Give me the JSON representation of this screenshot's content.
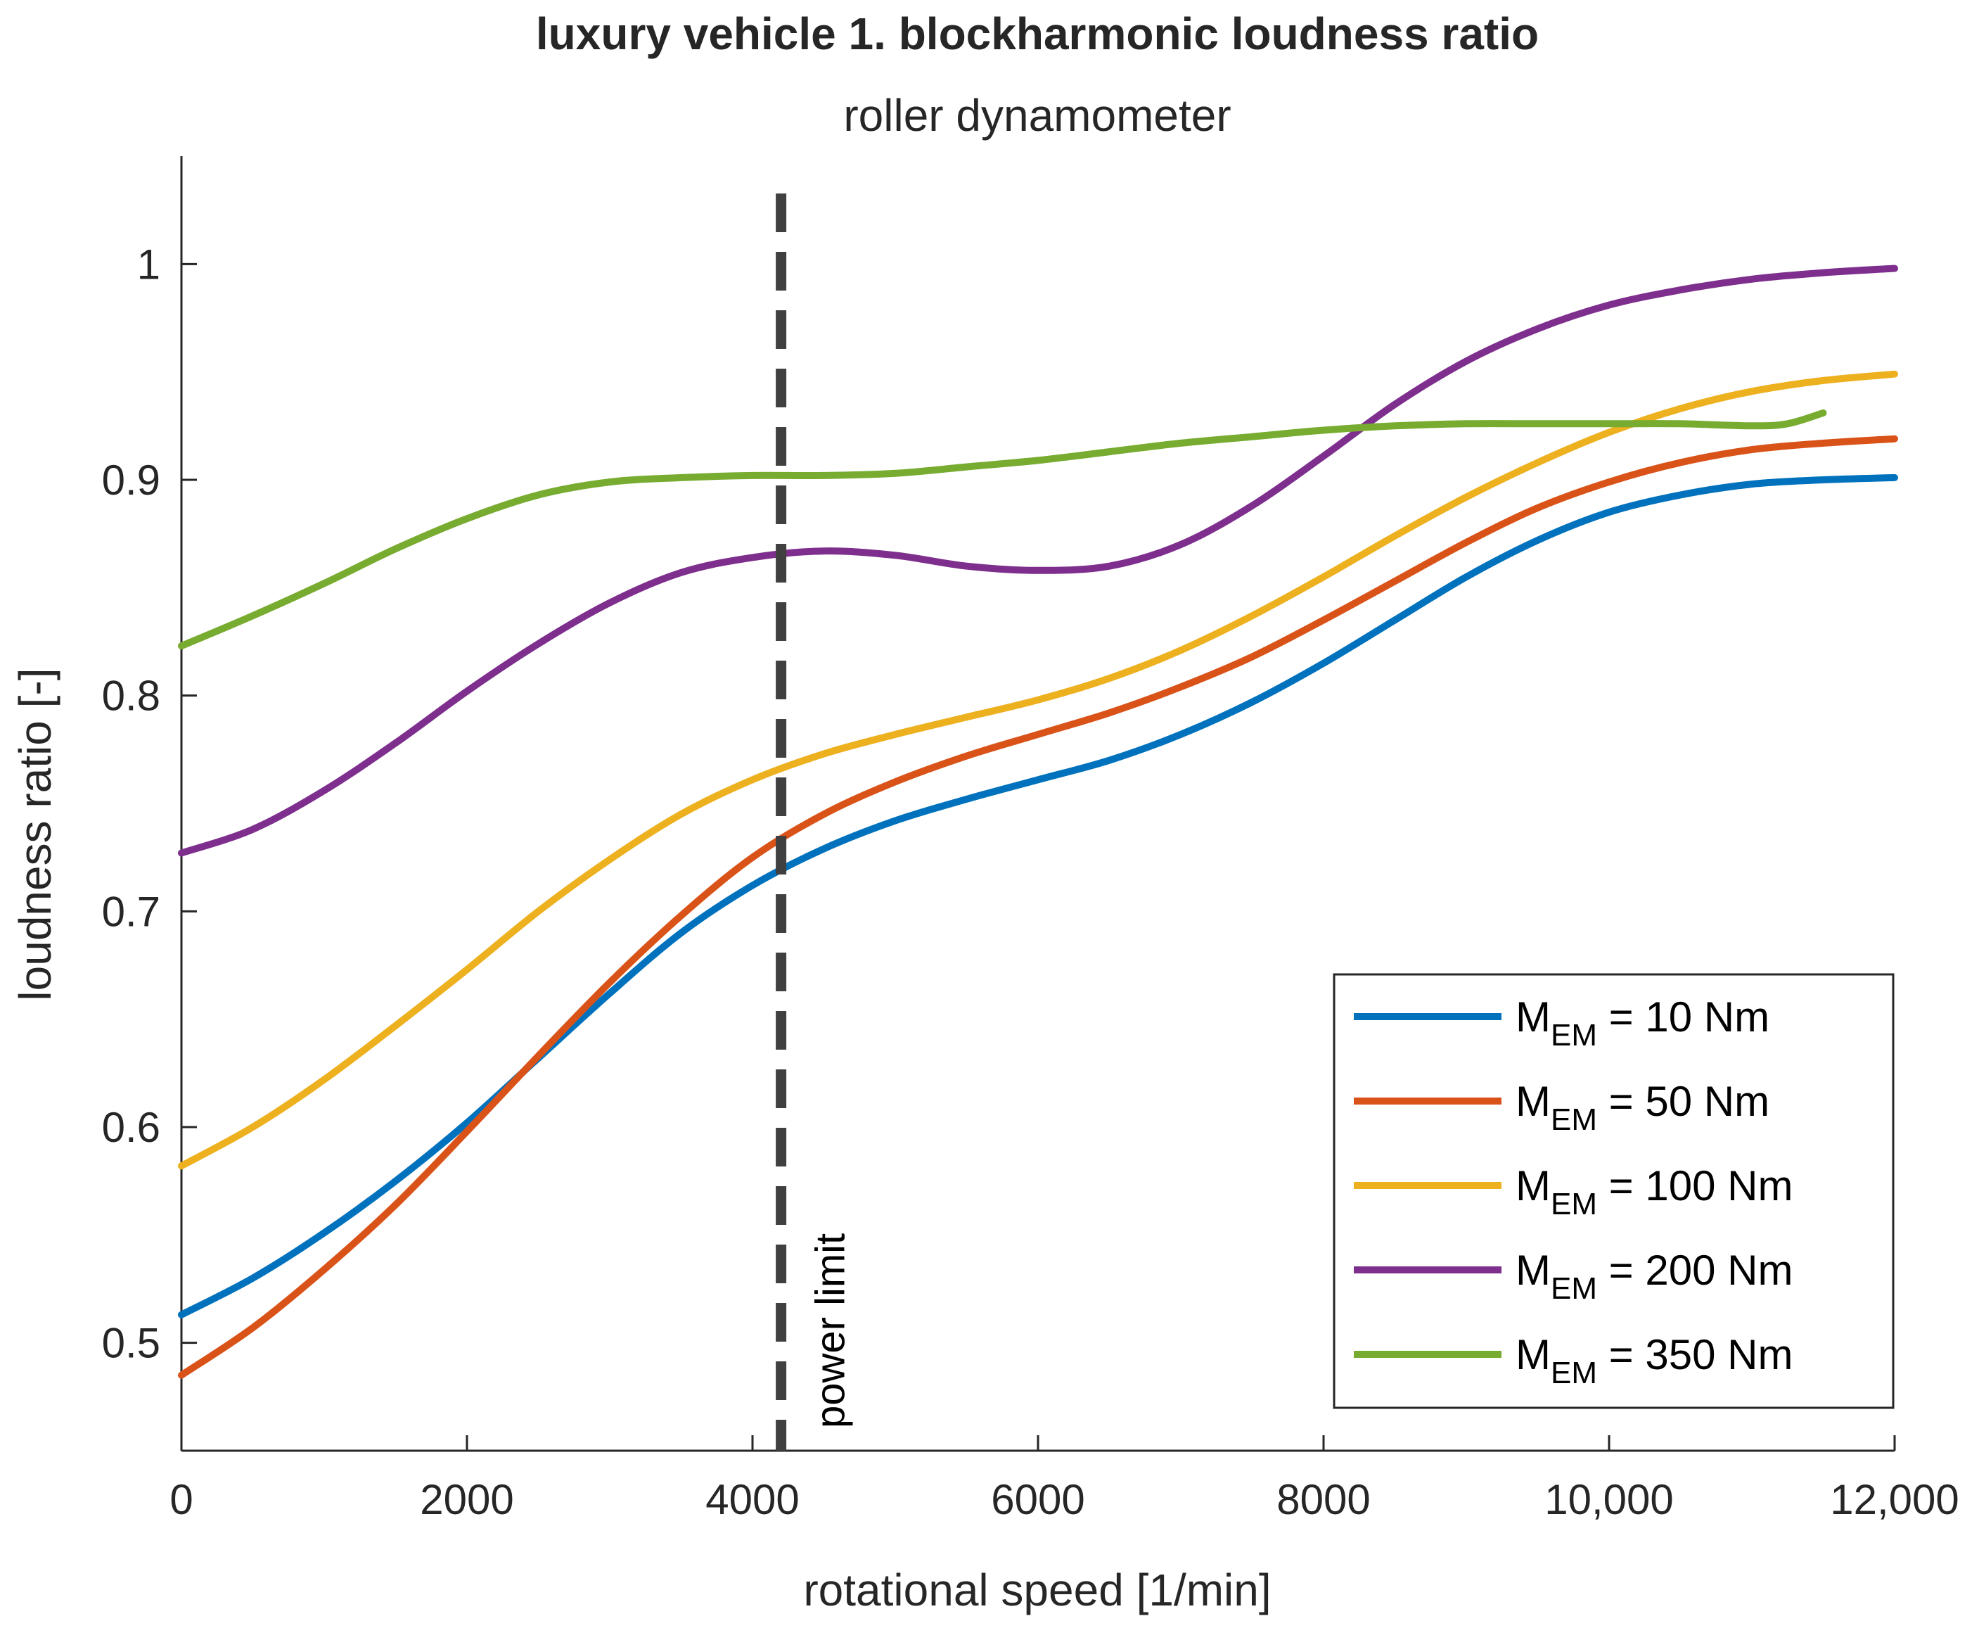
{
  "chart_data": {
    "type": "line",
    "title": "luxury vehicle 1. blockharmonic loudness ratio",
    "subtitle": "roller dynamometer",
    "xlabel": "rotational speed [1/min]",
    "ylabel": "loudness ratio [-]",
    "xlim": [
      0,
      12000
    ],
    "ylim": [
      0.45,
      1.05
    ],
    "xticks": [
      0,
      2000,
      4000,
      6000,
      8000,
      10000,
      12000
    ],
    "xtick_labels": [
      "0",
      "2000",
      "4000",
      "6000",
      "8000",
      "10,000",
      "12,000"
    ],
    "yticks": [
      0.5,
      0.6,
      0.7,
      0.8,
      0.9,
      1.0
    ],
    "ytick_labels": [
      "0.5",
      "0.6",
      "0.7",
      "0.8",
      "0.9",
      "1"
    ],
    "grid": false,
    "legend_position": "bottom-right",
    "annotation": {
      "text": "power limit",
      "x": 4200,
      "style": "dashed vertical line"
    },
    "series": [
      {
        "name": "M_EM = 10 Nm",
        "legend_main": "M",
        "legend_sub": "EM",
        "legend_value": " =   10 Nm",
        "color": "#0072BD",
        "x": [
          0,
          500,
          1000,
          1500,
          2000,
          2500,
          3000,
          3500,
          4000,
          4500,
          5000,
          5500,
          6000,
          6500,
          7000,
          7500,
          8000,
          8500,
          9000,
          9500,
          10000,
          10500,
          11000,
          11500,
          12000
        ],
        "y": [
          0.513,
          0.53,
          0.551,
          0.575,
          0.602,
          0.632,
          0.662,
          0.69,
          0.712,
          0.729,
          0.742,
          0.752,
          0.761,
          0.77,
          0.782,
          0.797,
          0.815,
          0.835,
          0.855,
          0.872,
          0.885,
          0.893,
          0.898,
          0.9,
          0.901
        ]
      },
      {
        "name": "M_EM = 50 Nm",
        "legend_main": "M",
        "legend_sub": "EM",
        "legend_value": " =   50 Nm",
        "color": "#D95319",
        "x": [
          0,
          500,
          1000,
          1500,
          2000,
          2500,
          3000,
          3500,
          4000,
          4500,
          5000,
          5500,
          6000,
          6500,
          7000,
          7500,
          8000,
          8500,
          9000,
          9500,
          10000,
          10500,
          11000,
          11500,
          12000
        ],
        "y": [
          0.485,
          0.507,
          0.534,
          0.564,
          0.598,
          0.633,
          0.667,
          0.698,
          0.725,
          0.745,
          0.76,
          0.772,
          0.782,
          0.792,
          0.804,
          0.818,
          0.835,
          0.853,
          0.871,
          0.887,
          0.899,
          0.908,
          0.914,
          0.917,
          0.919
        ]
      },
      {
        "name": "M_EM = 100 Nm",
        "legend_main": "M",
        "legend_sub": "EM",
        "legend_value": " = 100 Nm",
        "color": "#EDB120",
        "x": [
          0,
          500,
          1000,
          1500,
          2000,
          2500,
          3000,
          3500,
          4000,
          4500,
          5000,
          5500,
          6000,
          6500,
          7000,
          7500,
          8000,
          8500,
          9000,
          9500,
          10000,
          10500,
          11000,
          11500,
          12000
        ],
        "y": [
          0.582,
          0.6,
          0.622,
          0.647,
          0.673,
          0.7,
          0.724,
          0.745,
          0.761,
          0.773,
          0.782,
          0.79,
          0.798,
          0.808,
          0.821,
          0.837,
          0.855,
          0.874,
          0.892,
          0.908,
          0.922,
          0.933,
          0.941,
          0.946,
          0.949
        ]
      },
      {
        "name": "M_EM = 200 Nm",
        "legend_main": "M",
        "legend_sub": "EM",
        "legend_value": " = 200 Nm",
        "color": "#7E2F8E",
        "x": [
          0,
          500,
          1000,
          1500,
          2000,
          2500,
          3000,
          3500,
          4000,
          4500,
          5000,
          5500,
          6000,
          6500,
          7000,
          7500,
          8000,
          8500,
          9000,
          9500,
          10000,
          10500,
          11000,
          11500,
          12000
        ],
        "y": [
          0.727,
          0.738,
          0.756,
          0.778,
          0.802,
          0.824,
          0.843,
          0.857,
          0.864,
          0.867,
          0.865,
          0.86,
          0.858,
          0.86,
          0.87,
          0.888,
          0.911,
          0.935,
          0.955,
          0.97,
          0.981,
          0.988,
          0.993,
          0.996,
          0.998
        ]
      },
      {
        "name": "M_EM = 350 Nm",
        "legend_main": "M",
        "legend_sub": "EM",
        "legend_value": " = 350 Nm",
        "color": "#77AC30",
        "x": [
          0,
          500,
          1000,
          1500,
          2000,
          2500,
          3000,
          3500,
          4000,
          4500,
          5000,
          5500,
          6000,
          6500,
          7000,
          7500,
          8000,
          8500,
          9000,
          9500,
          10000,
          10500,
          11000,
          11250,
          11500
        ],
        "y": [
          0.823,
          0.837,
          0.852,
          0.868,
          0.882,
          0.893,
          0.899,
          0.901,
          0.902,
          0.902,
          0.903,
          0.906,
          0.909,
          0.913,
          0.917,
          0.92,
          0.923,
          0.925,
          0.926,
          0.926,
          0.926,
          0.926,
          0.925,
          0.926,
          0.931
        ]
      }
    ]
  }
}
